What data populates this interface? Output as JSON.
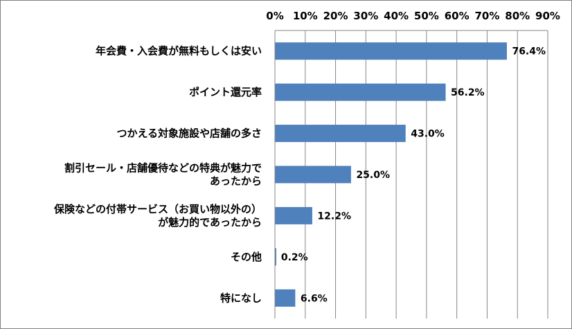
{
  "chart_data": {
    "type": "bar",
    "orientation": "horizontal",
    "axis_position": "top",
    "xlim": [
      0,
      90
    ],
    "ticks": [
      0,
      10,
      20,
      30,
      40,
      50,
      60,
      70,
      80,
      90
    ],
    "tick_labels": [
      "0%",
      "10%",
      "20%",
      "30%",
      "40%",
      "50%",
      "60%",
      "70%",
      "80%",
      "90%"
    ],
    "grid": true,
    "legend": "none",
    "bar_color": "#4f81bd",
    "categories": [
      [
        "年会費・入会費が無料もしくは安い"
      ],
      [
        "ポイント還元率"
      ],
      [
        "つかえる対象施設や店舗の多さ"
      ],
      [
        "割引セール・店舗優待などの特典が魅力で",
        "あったから"
      ],
      [
        "保険などの付帯サービス（お買い物以外の）",
        "が魅力的であったから"
      ],
      [
        "その他"
      ],
      [
        "特になし"
      ]
    ],
    "values": [
      76.4,
      56.2,
      43.0,
      25.0,
      12.2,
      0.2,
      6.6
    ],
    "data_labels": [
      "76.4%",
      "56.2%",
      "43.0%",
      "25.0%",
      "12.2%",
      "0.2%",
      "6.6%"
    ]
  }
}
